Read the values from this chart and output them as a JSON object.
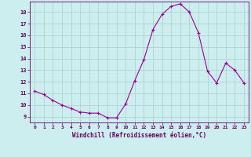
{
  "hours": [
    0,
    1,
    2,
    3,
    4,
    5,
    6,
    7,
    8,
    9,
    10,
    11,
    12,
    13,
    14,
    15,
    16,
    17,
    18,
    19,
    20,
    21,
    22,
    23
  ],
  "windchill": [
    11.2,
    10.9,
    10.4,
    10.0,
    9.7,
    9.4,
    9.3,
    9.3,
    8.9,
    8.9,
    10.1,
    12.1,
    13.9,
    16.5,
    17.8,
    18.5,
    18.7,
    18.0,
    16.2,
    12.9,
    11.9,
    13.6,
    13.0,
    11.9
  ],
  "line_color": "#990099",
  "marker_color": "#990099",
  "bg_color": "#cceeee",
  "grid_color": "#aacccc",
  "text_color": "#660066",
  "xlabel": "Windchill (Refroidissement éolien,°C)",
  "ylim": [
    8.5,
    18.9
  ],
  "yticks": [
    9,
    10,
    11,
    12,
    13,
    14,
    15,
    16,
    17,
    18
  ],
  "xticks": [
    0,
    1,
    2,
    3,
    4,
    5,
    6,
    7,
    8,
    9,
    10,
    11,
    12,
    13,
    14,
    15,
    16,
    17,
    18,
    19,
    20,
    21,
    22,
    23
  ]
}
